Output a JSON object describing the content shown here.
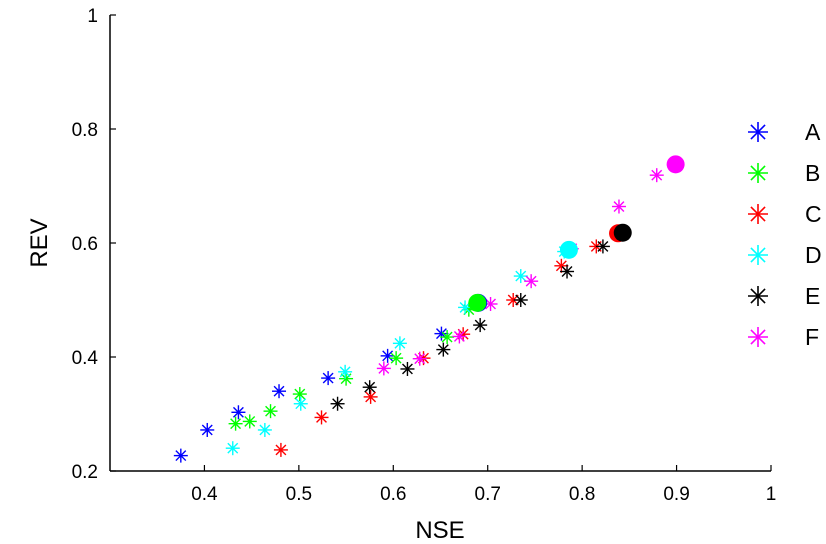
{
  "chart_data": {
    "type": "scatter",
    "title": "",
    "xlabel": "NSE",
    "ylabel": "REV",
    "xlim": [
      0.3,
      1.0
    ],
    "ylim": [
      0.2,
      1.0
    ],
    "xticks": [
      "0.4",
      "0.5",
      "0.6",
      "0.7",
      "0.8",
      "0.9",
      "1"
    ],
    "yticks": [
      "0.2",
      "0.4",
      "0.6",
      "0.8",
      "1"
    ],
    "grid": false,
    "legend_position": "right",
    "series": [
      {
        "name": "A",
        "color": "#0000ff",
        "marker": "asterisk",
        "points": [
          [
            0.375,
            0.227
          ],
          [
            0.403,
            0.272
          ],
          [
            0.436,
            0.303
          ],
          [
            0.479,
            0.34
          ],
          [
            0.531,
            0.363
          ],
          [
            0.594,
            0.402
          ],
          [
            0.651,
            0.441
          ],
          [
            0.69,
            0.495
          ]
        ],
        "highlight": [
          0.69,
          0.495
        ]
      },
      {
        "name": "B",
        "color": "#00ff00",
        "marker": "asterisk",
        "points": [
          [
            0.433,
            0.283
          ],
          [
            0.448,
            0.287
          ],
          [
            0.47,
            0.305
          ],
          [
            0.501,
            0.335
          ],
          [
            0.55,
            0.362
          ],
          [
            0.603,
            0.398
          ],
          [
            0.657,
            0.435
          ],
          [
            0.68,
            0.483
          ]
        ],
        "highlight": [
          0.689,
          0.495
        ]
      },
      {
        "name": "C",
        "color": "#ff0000",
        "marker": "asterisk",
        "points": [
          [
            0.481,
            0.237
          ],
          [
            0.524,
            0.294
          ],
          [
            0.576,
            0.33
          ],
          [
            0.632,
            0.398
          ],
          [
            0.674,
            0.44
          ],
          [
            0.727,
            0.5
          ],
          [
            0.778,
            0.56
          ],
          [
            0.815,
            0.594
          ],
          [
            0.838,
            0.617
          ]
        ],
        "highlight": [
          0.838,
          0.617
        ]
      },
      {
        "name": "D",
        "color": "#00ffff",
        "marker": "asterisk",
        "points": [
          [
            0.43,
            0.24
          ],
          [
            0.464,
            0.272
          ],
          [
            0.502,
            0.318
          ],
          [
            0.549,
            0.374
          ],
          [
            0.607,
            0.424
          ],
          [
            0.676,
            0.487
          ],
          [
            0.735,
            0.542
          ],
          [
            0.781,
            0.585
          ]
        ],
        "highlight": [
          0.786,
          0.588
        ]
      },
      {
        "name": "E",
        "color": "#000000",
        "marker": "asterisk",
        "points": [
          [
            0.541,
            0.318
          ],
          [
            0.575,
            0.347
          ],
          [
            0.615,
            0.379
          ],
          [
            0.653,
            0.413
          ],
          [
            0.692,
            0.456
          ],
          [
            0.735,
            0.5
          ],
          [
            0.784,
            0.55
          ],
          [
            0.822,
            0.594
          ]
        ],
        "highlight": [
          0.843,
          0.618
        ]
      },
      {
        "name": "F",
        "color": "#ff00ff",
        "marker": "asterisk",
        "points": [
          [
            0.59,
            0.38
          ],
          [
            0.628,
            0.397
          ],
          [
            0.67,
            0.436
          ],
          [
            0.703,
            0.493
          ],
          [
            0.746,
            0.533
          ],
          [
            0.789,
            0.59
          ],
          [
            0.839,
            0.664
          ],
          [
            0.879,
            0.719
          ]
        ],
        "highlight": [
          0.899,
          0.738
        ]
      }
    ]
  }
}
